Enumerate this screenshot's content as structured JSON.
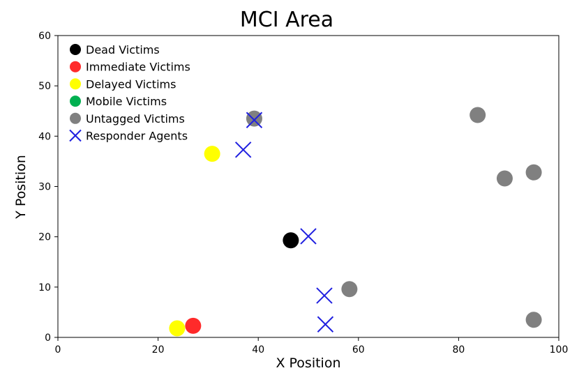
{
  "chart_data": {
    "type": "scatter",
    "title": "MCI Area",
    "xlabel": "X Position",
    "ylabel": "Y Position",
    "xlim": [
      0,
      100
    ],
    "ylim": [
      0,
      60
    ],
    "xticks": [
      0,
      20,
      40,
      60,
      80,
      100
    ],
    "yticks": [
      0,
      10,
      20,
      30,
      40,
      50,
      60
    ],
    "grid": false,
    "legend_position": "top-left",
    "series": [
      {
        "name": "Dead Victims",
        "marker": "circle",
        "color": "#000000",
        "points": [
          {
            "x": 46.5,
            "y": 19.3
          }
        ]
      },
      {
        "name": "Immediate Victims",
        "marker": "circle",
        "color": "#ff2a2a",
        "points": [
          {
            "x": 27.0,
            "y": 2.3
          }
        ]
      },
      {
        "name": "Delayed Victims",
        "marker": "circle",
        "color": "#ffff00",
        "points": [
          {
            "x": 30.8,
            "y": 36.5
          },
          {
            "x": 23.8,
            "y": 1.8
          }
        ]
      },
      {
        "name": "Mobile Victims",
        "marker": "circle",
        "color": "#00b050",
        "points": []
      },
      {
        "name": "Untagged Victims",
        "marker": "circle",
        "color": "#808080",
        "points": [
          {
            "x": 39.2,
            "y": 43.5
          },
          {
            "x": 83.8,
            "y": 44.2
          },
          {
            "x": 89.2,
            "y": 31.6
          },
          {
            "x": 95.0,
            "y": 32.8
          },
          {
            "x": 58.2,
            "y": 9.6
          },
          {
            "x": 95.0,
            "y": 3.5
          }
        ]
      },
      {
        "name": "Responder Agents",
        "marker": "x",
        "color": "#2020e0",
        "points": [
          {
            "x": 39.2,
            "y": 43.2
          },
          {
            "x": 37.0,
            "y": 37.3
          },
          {
            "x": 50.0,
            "y": 20.1
          },
          {
            "x": 53.2,
            "y": 8.3
          },
          {
            "x": 53.4,
            "y": 2.6
          }
        ]
      }
    ]
  }
}
